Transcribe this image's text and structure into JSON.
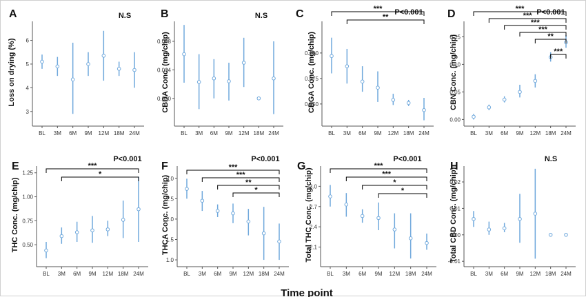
{
  "chart_data": [
    {
      "panel": "A",
      "type": "scatter",
      "ylabel": "Loss on drying (%)",
      "sig": "N.S",
      "categories": [
        "BL",
        "3M",
        "6M",
        "9M",
        "12M",
        "18M",
        "24M"
      ],
      "ylim": [
        2.5,
        6.8
      ],
      "yticks": [
        3,
        4,
        5,
        6
      ],
      "tick_labels": [
        "3",
        "4",
        "5",
        "6"
      ],
      "mean": [
        5.1,
        4.9,
        4.35,
        5.0,
        5.35,
        4.8,
        4.75
      ],
      "lo": [
        4.8,
        4.5,
        2.9,
        4.5,
        4.3,
        4.5,
        4.0
      ],
      "hi": [
        5.4,
        5.3,
        5.9,
        5.5,
        6.4,
        5.1,
        5.5
      ],
      "brackets": []
    },
    {
      "panel": "B",
      "type": "scatter",
      "ylabel": "CBDA Conc. (mg/chip)",
      "sig": "N.S",
      "categories": [
        "BL",
        "3M",
        "6M",
        "9M",
        "12M",
        "18M",
        "24M"
      ],
      "ylim": [
        -0.0035,
        0.0108
      ],
      "yticks": [
        0,
        0.004,
        0.008
      ],
      "tick_labels": [
        "0.000",
        "0.004",
        "0.008"
      ],
      "mean": [
        0.0062,
        0.0023,
        0.0028,
        0.0024,
        0.005,
        0.0,
        0.0028
      ],
      "lo": [
        0.0022,
        -0.0015,
        0.0,
        -0.0003,
        0.0016,
        0.0,
        -0.0022
      ],
      "hi": [
        0.0103,
        0.0062,
        0.0055,
        0.005,
        0.0085,
        0.0,
        0.008
      ],
      "brackets": []
    },
    {
      "panel": "C",
      "type": "scatter",
      "ylabel": "CBGA Conc. (mg/chip)",
      "sig": "P<0.001",
      "categories": [
        "BL",
        "3M",
        "6M",
        "9M",
        "12M",
        "18M",
        "24M"
      ],
      "ylim": [
        0.031,
        0.131
      ],
      "yticks": [
        0.05,
        0.075,
        0.1
      ],
      "tick_labels": [
        "0.050",
        "0.075",
        "0.100"
      ],
      "mean": [
        0.097,
        0.087,
        0.072,
        0.066,
        0.054,
        0.051,
        0.044
      ],
      "lo": [
        0.08,
        0.07,
        0.062,
        0.052,
        0.049,
        0.048,
        0.034
      ],
      "hi": [
        0.115,
        0.104,
        0.087,
        0.082,
        0.06,
        0.054,
        0.056
      ],
      "brackets": [
        {
          "from": 0,
          "to": 6,
          "label": "***"
        },
        {
          "from": 1,
          "to": 6,
          "label": "**"
        }
      ]
    },
    {
      "panel": "D",
      "type": "scatter",
      "ylabel": "CBN Conc. (mg/chip)",
      "sig": "P<0.001",
      "categories": [
        "BL",
        "3M",
        "6M",
        "9M",
        "12M",
        "18M",
        "24M"
      ],
      "ylim": [
        -0.007,
        0.178
      ],
      "yticks": [
        0,
        0.05,
        0.1,
        0.15
      ],
      "tick_labels": [
        "0.00",
        "0.05",
        "0.10",
        "0.15"
      ],
      "mean": [
        0.005,
        0.022,
        0.036,
        0.05,
        0.07,
        0.113,
        0.14
      ],
      "lo": [
        0.0,
        0.017,
        0.031,
        0.04,
        0.058,
        0.105,
        0.13
      ],
      "hi": [
        0.01,
        0.027,
        0.042,
        0.063,
        0.082,
        0.122,
        0.153
      ],
      "brackets": [
        {
          "from": 0,
          "to": 6,
          "label": "***"
        },
        {
          "from": 1,
          "to": 6,
          "label": "***"
        },
        {
          "from": 2,
          "to": 6,
          "label": "***"
        },
        {
          "from": 3,
          "to": 6,
          "label": "***"
        },
        {
          "from": 4,
          "to": 6,
          "label": "**"
        },
        {
          "from": 5,
          "to": 6,
          "label": "***"
        }
      ]
    },
    {
      "panel": "E",
      "type": "scatter",
      "ylabel": "THC Conc. (mg/chip)",
      "sig": "P<0.001",
      "categories": [
        "BL",
        "3M",
        "6M",
        "9M",
        "12M",
        "18M",
        "24M"
      ],
      "ylim": [
        0.3,
        1.32
      ],
      "yticks": [
        0.5,
        0.75,
        1.0,
        1.25
      ],
      "tick_labels": [
        "0.50",
        "0.75",
        "1.00",
        "1.25"
      ],
      "mean": [
        0.44,
        0.59,
        0.63,
        0.65,
        0.66,
        0.76,
        0.87
      ],
      "lo": [
        0.36,
        0.51,
        0.53,
        0.52,
        0.59,
        0.57,
        0.53
      ],
      "hi": [
        0.53,
        0.68,
        0.74,
        0.8,
        0.75,
        0.96,
        1.21
      ],
      "brackets": [
        {
          "from": 0,
          "to": 6,
          "label": "***"
        },
        {
          "from": 1,
          "to": 6,
          "label": "*"
        }
      ]
    },
    {
      "panel": "F",
      "type": "scatter",
      "ylabel": "THCA Conc. (mg/chip)",
      "sig": "P<0.001",
      "categories": [
        "BL",
        "3M",
        "6M",
        "9M",
        "12M",
        "18M",
        "24M"
      ],
      "ylim": [
        0.9,
        3.3
      ],
      "yticks": [
        1.0,
        1.5,
        2.0,
        2.5,
        3.0
      ],
      "tick_labels": [
        "1.0",
        "1.5",
        "2.0",
        "2.5",
        "3.0"
      ],
      "mean": [
        2.74,
        2.45,
        2.2,
        2.14,
        1.94,
        1.65,
        1.45
      ],
      "lo": [
        2.5,
        2.2,
        2.05,
        1.9,
        1.6,
        1.0,
        1.0
      ],
      "hi": [
        2.99,
        2.69,
        2.36,
        2.38,
        2.25,
        2.3,
        1.89
      ],
      "brackets": [
        {
          "from": 0,
          "to": 6,
          "label": "***"
        },
        {
          "from": 1,
          "to": 6,
          "label": "***"
        },
        {
          "from": 2,
          "to": 6,
          "label": "**"
        },
        {
          "from": 3,
          "to": 6,
          "label": "*"
        }
      ]
    },
    {
      "panel": "G",
      "type": "scatter",
      "ylabel": "Total THC Conc. (mg/chip)",
      "sig": "P<0.001",
      "categories": [
        "BL",
        "3M",
        "6M",
        "9M",
        "12M",
        "18M",
        "24M"
      ],
      "ylim": [
        1.85,
        3.3
      ],
      "yticks": [
        2.1,
        2.4,
        2.7,
        3.0
      ],
      "tick_labels": [
        "2.1",
        "2.4",
        "2.7",
        "3.0"
      ],
      "mean": [
        2.85,
        2.73,
        2.56,
        2.53,
        2.36,
        2.23,
        2.16
      ],
      "lo": [
        2.7,
        2.55,
        2.46,
        2.35,
        2.08,
        1.93,
        2.06
      ],
      "hi": [
        3.02,
        2.9,
        2.66,
        2.76,
        2.6,
        2.6,
        2.3
      ],
      "brackets": [
        {
          "from": 0,
          "to": 6,
          "label": "***"
        },
        {
          "from": 1,
          "to": 6,
          "label": "***"
        },
        {
          "from": 2,
          "to": 6,
          "label": "*"
        },
        {
          "from": 3,
          "to": 6,
          "label": "*"
        }
      ]
    },
    {
      "panel": "H",
      "type": "scatter",
      "ylabel": "Total CBD Conc. (mg/chip)",
      "sig": "N.S",
      "categories": [
        "BL",
        "3M",
        "6M",
        "9M",
        "12M",
        "18M",
        "24M"
      ],
      "ylim": [
        -0.011,
        0.026
      ],
      "yticks": [
        -0.01,
        0,
        0.01,
        0.02
      ],
      "tick_labels": [
        "-0.01",
        "0.00",
        "0.01",
        "0.02"
      ],
      "mean": [
        0.006,
        0.002,
        0.0025,
        0.006,
        0.008,
        0.0,
        0.0
      ],
      "lo": [
        0.003,
        0.0,
        0.001,
        -0.003,
        -0.009,
        0.0,
        0.0
      ],
      "hi": [
        0.009,
        0.005,
        0.0045,
        0.0155,
        0.025,
        0.0,
        0.0
      ],
      "brackets": []
    }
  ],
  "xlabel": "Time point",
  "colors": {
    "series": "#6fa8dc",
    "bracket": "#000000",
    "axis": "#555555"
  }
}
